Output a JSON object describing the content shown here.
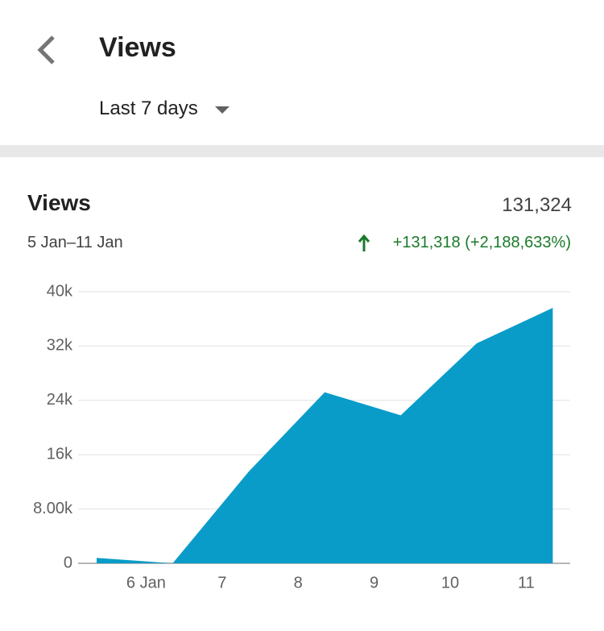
{
  "header": {
    "title": "Views",
    "period": "Last 7 days"
  },
  "card": {
    "title": "Views",
    "total": "131,324",
    "date_range": "5 Jan–11 Jan",
    "change": "+131,318 (+2,188,633%)"
  },
  "chart_data": {
    "type": "area",
    "categories": [
      null,
      "6 Jan",
      "7",
      "8",
      "9",
      "10",
      "11"
    ],
    "values": [
      800,
      0,
      13500,
      25200,
      21800,
      32400,
      37624
    ],
    "color": "#0a9cc9",
    "ylim": [
      0,
      40000
    ],
    "yticks": [
      0,
      {
        "value": 8000,
        "label": "8.00k"
      },
      {
        "value": 16000,
        "label": "16k"
      },
      {
        "value": 24000,
        "label": "24k"
      },
      {
        "value": 32000,
        "label": "32k"
      },
      {
        "value": 40000,
        "label": "40k"
      }
    ],
    "grid": true
  }
}
